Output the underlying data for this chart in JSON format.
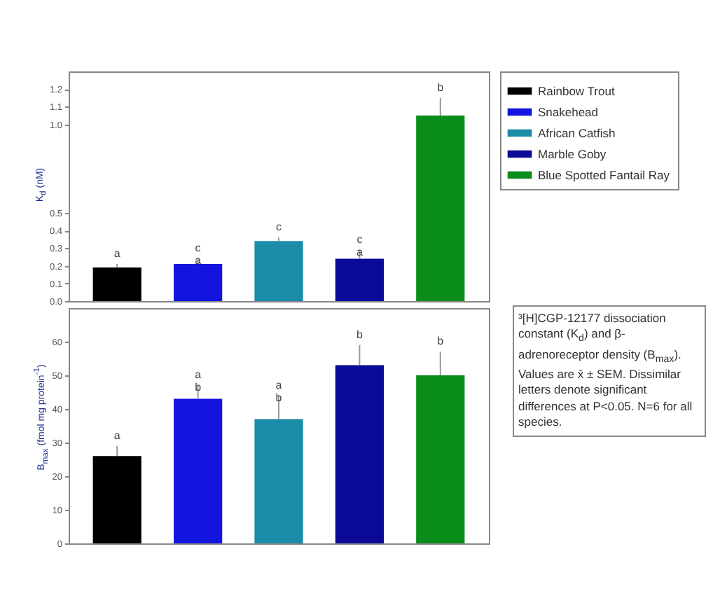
{
  "chart_data": [
    {
      "type": "bar",
      "ylabel": "K$_{d}$ (nM)",
      "categories": [
        null,
        null,
        null,
        null,
        null
      ],
      "stacked": true,
      "series": [
        {
          "name": "Rainbow Trout",
          "color": "#000000",
          "values": [
            0.19,
            null,
            null,
            null,
            null
          ],
          "errors": [
            0.02,
            null,
            null,
            null,
            null
          ]
        },
        {
          "name": "Snakehead",
          "color": "#1414e0",
          "values": [
            null,
            0.21,
            null,
            null,
            null
          ],
          "errors": [
            null,
            0.03,
            null,
            null,
            null
          ]
        },
        {
          "name": "African Catfish",
          "color": "#1a8ca8",
          "values": [
            null,
            null,
            0.34,
            null,
            null
          ],
          "errors": [
            null,
            null,
            0.02,
            null,
            null
          ]
        },
        {
          "name": "Marble Goby",
          "color": "#0a0a96",
          "values": [
            null,
            null,
            null,
            0.24,
            null
          ],
          "errors": [
            null,
            null,
            null,
            0.05,
            null
          ]
        },
        {
          "name": "Blue Spotted Fantail Ray",
          "color": "#0a8c1a",
          "values": [
            null,
            null,
            null,
            null,
            1.05
          ],
          "errors": [
            null,
            null,
            null,
            null,
            0.1
          ]
        }
      ],
      "ylim": [
        0,
        1.3
      ],
      "yticks": [
        {
          "value": 0,
          "label": "0.0"
        },
        0.1,
        0.2,
        0.3,
        0.4,
        0.5,
        {
          "value": 1,
          "label": "1.0"
        },
        1.1,
        1.2
      ],
      "annotations": [
        "a",
        "c\na",
        "c",
        "c\na",
        "b"
      ],
      "legend": "right",
      "tick_labels": "y"
    },
    {
      "type": "bar",
      "ylabel": "B$_{max}$ (fmol mg protein$^{-1}$)",
      "categories": [
        null,
        null,
        null,
        null,
        null
      ],
      "stacked": true,
      "series": [
        {
          "color": "#000000",
          "values": [
            26,
            null,
            null,
            null,
            null
          ],
          "errors": [
            3,
            null,
            null,
            null,
            null
          ]
        },
        {
          "color": "#1414e0",
          "values": [
            null,
            43,
            null,
            null,
            null
          ],
          "errors": [
            null,
            4,
            null,
            null,
            null
          ]
        },
        {
          "color": "#1a8ca8",
          "values": [
            null,
            null,
            37,
            null,
            null
          ],
          "errors": [
            null,
            null,
            7,
            null,
            null
          ]
        },
        {
          "color": "#0a0a96",
          "values": [
            null,
            null,
            null,
            53,
            null
          ],
          "errors": [
            null,
            null,
            null,
            6,
            null
          ]
        },
        {
          "color": "#0a8c1a",
          "values": [
            null,
            null,
            null,
            null,
            50
          ],
          "errors": [
            null,
            null,
            null,
            null,
            7
          ]
        }
      ],
      "ylim": [
        0,
        70
      ],
      "yticks": [
        0,
        10,
        20,
        30,
        40,
        50,
        60
      ],
      "annotations": [
        "a",
        "a\nb",
        "a\nb",
        "b",
        "b",
        "³[H]CGP-12177 dissociation constant (K$_{d}$) and β-adrenoreceptor density (B$_{max}$). Values are x̄ ± SEM. Dissimilar letters denote significant differences at P<0.05. N=6 for all species."
      ],
      "tick_labels": "y"
    }
  ]
}
